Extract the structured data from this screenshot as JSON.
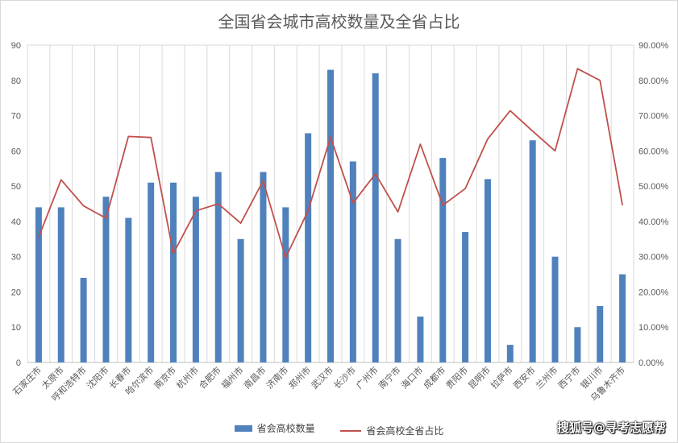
{
  "chart_data": {
    "type": "bar+line",
    "title": "全国省会城市高校数量及全省占比",
    "categories": [
      "石家庄市",
      "太原市",
      "呼和浩特市",
      "沈阳市",
      "长春市",
      "哈尔滨市",
      "南京市",
      "杭州市",
      "合肥市",
      "福州市",
      "南昌市",
      "济南市",
      "郑州市",
      "武汉市",
      "长沙市",
      "广州市",
      "南宁市",
      "海口市",
      "成都市",
      "贵阳市",
      "昆明市",
      "拉萨市",
      "西安市",
      "兰州市",
      "西宁市",
      "银川市",
      "乌鲁木齐市"
    ],
    "series": [
      {
        "name": "省会高校数量",
        "type": "bar",
        "axis": "left",
        "color": "#4f81bd",
        "values": [
          44,
          44,
          24,
          47,
          41,
          51,
          51,
          47,
          54,
          35,
          54,
          44,
          65,
          83,
          57,
          82,
          35,
          13,
          58,
          37,
          52,
          5,
          63,
          30,
          10,
          16,
          25
        ]
      },
      {
        "name": "省会高校全省占比",
        "type": "line",
        "axis": "right",
        "color": "#c0504d",
        "values": [
          35.5,
          51.8,
          44.4,
          40.9,
          64.1,
          63.8,
          30.9,
          43.0,
          45.0,
          39.5,
          51.5,
          29.7,
          43.0,
          63.9,
          45.2,
          53.5,
          42.7,
          61.9,
          44.6,
          49.3,
          63.4,
          71.4,
          65.6,
          60.0,
          83.3,
          80.0,
          44.6
        ]
      }
    ],
    "y_left": {
      "min": 0,
      "max": 90,
      "ticks": [
        "0",
        "10",
        "20",
        "30",
        "40",
        "50",
        "60",
        "70",
        "80",
        "90"
      ]
    },
    "y_right": {
      "min": 0,
      "max": 90,
      "ticks": [
        "0.00%",
        "10.00%",
        "20.00%",
        "30.00%",
        "40.00%",
        "50.00%",
        "60.00%",
        "70.00%",
        "80.00%",
        "90.00%"
      ]
    },
    "grid": "vertical",
    "legend": "bottom"
  },
  "watermark": "搜狐号@寻考志愿帮"
}
